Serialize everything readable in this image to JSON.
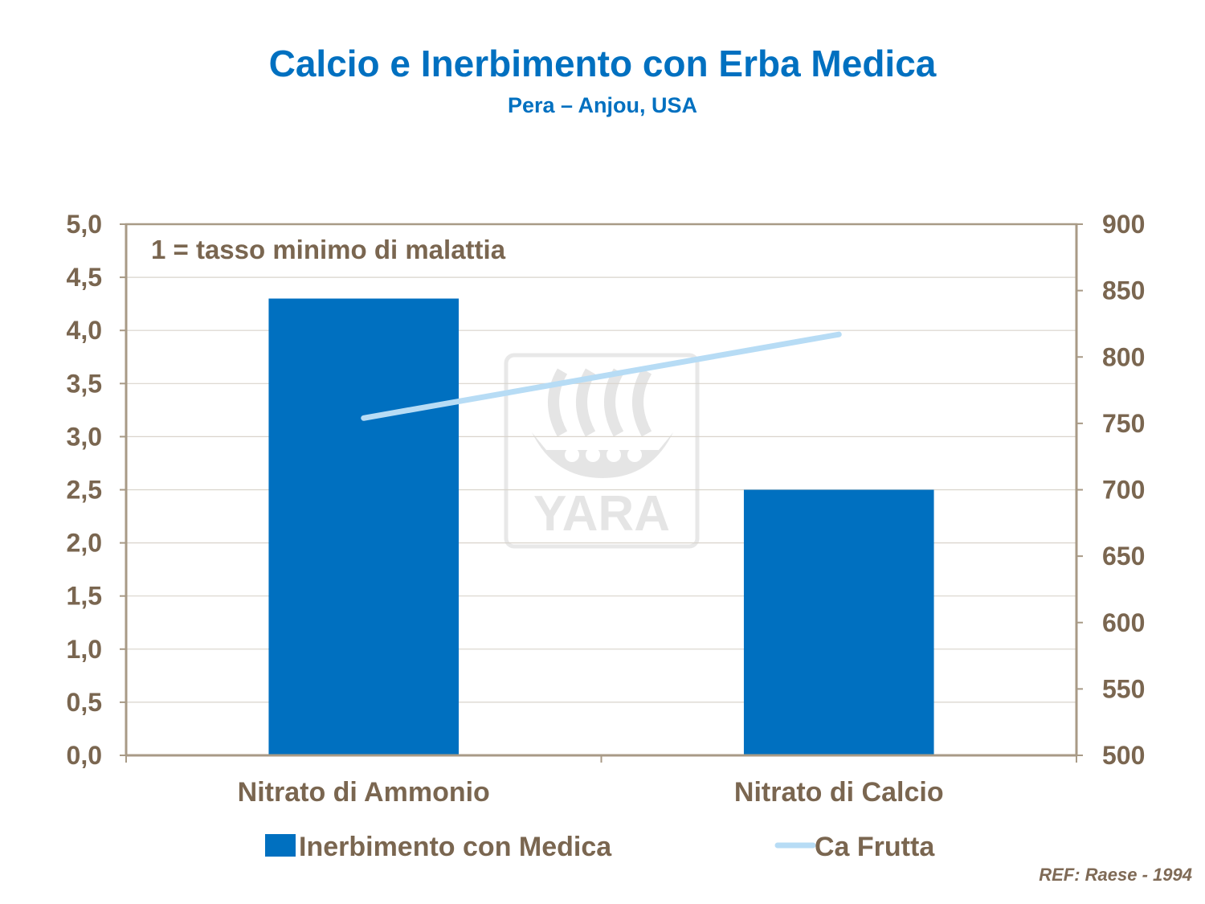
{
  "chart_data": {
    "type": "bar",
    "title": "Calcio e Inerbimento con Erba Medica",
    "subtitle": "Pera – Anjou, USA",
    "categories": [
      "Nitrato di Ammonio",
      "Nitrato di Calcio"
    ],
    "series": [
      {
        "name": "Inerbimento con Medica",
        "type": "bar",
        "axis": "left",
        "color": "#0070c0",
        "values": [
          4.3,
          2.5
        ]
      },
      {
        "name": "Ca Frutta",
        "type": "line",
        "axis": "right",
        "color": "#b7dcf5",
        "values": [
          754,
          817
        ]
      }
    ],
    "y_left": {
      "min": 0,
      "max": 5,
      "ticks": [
        "0,0",
        "0,5",
        "1,0",
        "1,5",
        "2,0",
        "2,5",
        "3,0",
        "3,5",
        "4,0",
        "4,5",
        "5,0"
      ]
    },
    "y_right": {
      "min": 500,
      "max": 900,
      "ticks": [
        "500",
        "550",
        "600",
        "650",
        "700",
        "750",
        "800",
        "850",
        "900"
      ]
    },
    "annotation": "1 = tasso minimo di malattia",
    "grid": true,
    "legend_position": "bottom",
    "watermark": "YARA",
    "reference": "REF: Raese - 1994",
    "colors": {
      "axis": "#a89a86",
      "grid": "#d9d4cc",
      "text": "#7a6650"
    }
  }
}
